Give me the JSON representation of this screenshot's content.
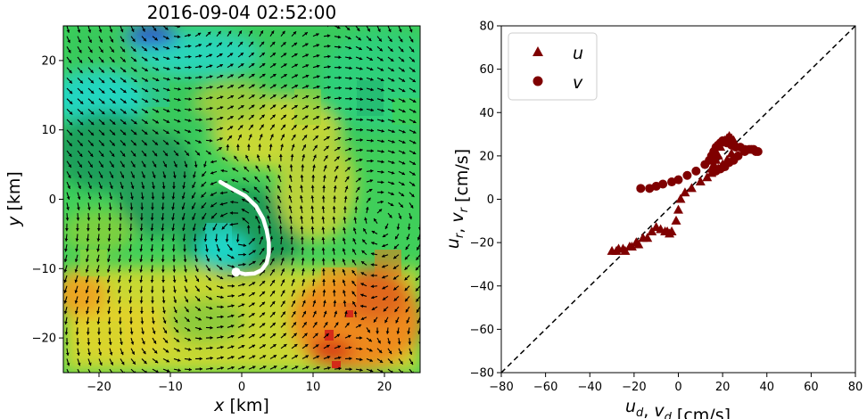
{
  "colors": {
    "marker": "#7f0000",
    "axis": "#000000",
    "trajectory": "#ffffff",
    "quiver": "#000000"
  },
  "chart_data": [
    {
      "type": "heatmap",
      "title": "2016-09-04 02:52:00",
      "xlabel": "x [km]",
      "ylabel": "y [km]",
      "xlim": [
        -25,
        25
      ],
      "ylim": [
        -25,
        25
      ],
      "xticks": [
        -20,
        -10,
        0,
        10,
        20
      ],
      "yticks": [
        -20,
        -10,
        0,
        10,
        20
      ],
      "xtick_labels": [
        "−20",
        "−10",
        "0",
        "10",
        "20"
      ],
      "ytick_labels": [
        "−20",
        "−10",
        "0",
        "10",
        "20"
      ],
      "overlay": "quiver velocity field (cyclonic eddy centered near (0, -5) km)",
      "trajectory": {
        "x": [
          -3,
          -1.5,
          0.5,
          2,
          3,
          3.5,
          3.8,
          3.8,
          3.5,
          2.8,
          1.8,
          0.5,
          -0.8
        ],
        "y": [
          2.5,
          1.6,
          0.5,
          -1,
          -2.8,
          -4.5,
          -6.2,
          -7.8,
          -9.2,
          -10.2,
          -10.7,
          -10.8,
          -10.5
        ]
      }
    },
    {
      "type": "scatter",
      "title": "",
      "xlabel": "u_d, v_d [cm/s]",
      "ylabel": "u_r, v_r [cm/s]",
      "xlim": [
        -80,
        80
      ],
      "ylim": [
        -80,
        80
      ],
      "xticks": [
        -80,
        -60,
        -40,
        -20,
        0,
        20,
        40,
        60,
        80
      ],
      "yticks": [
        -80,
        -60,
        -40,
        -20,
        0,
        20,
        40,
        60,
        80
      ],
      "xtick_labels": [
        "−80",
        "−60",
        "−40",
        "−20",
        "0",
        "20",
        "40",
        "60",
        "80"
      ],
      "ytick_labels": [
        "−80",
        "−60",
        "−40",
        "−20",
        "0",
        "20",
        "40",
        "60",
        "80"
      ],
      "reference_line": "y = x (dashed)",
      "legend": {
        "placement": "top-left",
        "entries": [
          "u",
          "v"
        ]
      },
      "series": [
        {
          "name": "u",
          "marker": "triangle",
          "x": [
            -30,
            -28,
            -27,
            -25,
            -24,
            -22,
            -21,
            -19,
            -18,
            -16,
            -14,
            -12,
            -10,
            -8,
            -6,
            -5,
            -4,
            -3,
            -1,
            0,
            1,
            3,
            6,
            10,
            13,
            15,
            16,
            17,
            18,
            19,
            20,
            21,
            22,
            23,
            24,
            25,
            26,
            24,
            22,
            20,
            18,
            16,
            15
          ],
          "y": [
            -24,
            -24,
            -23,
            -23,
            -24,
            -22,
            -22,
            -20,
            -21,
            -18,
            -18,
            -15,
            -13,
            -14,
            -15,
            -15,
            -16,
            -15,
            -10,
            -5,
            0,
            3,
            5,
            8,
            10,
            14,
            16,
            18,
            20,
            24,
            26,
            27,
            28,
            29,
            28,
            27,
            25,
            21,
            18,
            16,
            14,
            13,
            12
          ]
        },
        {
          "name": "v",
          "marker": "circle",
          "x": [
            -17,
            -13,
            -10,
            -7,
            -3,
            0,
            4,
            8,
            12,
            14,
            15,
            16,
            17,
            18,
            19,
            20,
            21,
            22,
            24,
            26,
            28,
            30,
            32,
            34,
            35,
            36,
            33,
            30,
            27,
            25,
            23,
            21,
            19,
            17,
            16
          ],
          "y": [
            5,
            5,
            6,
            7,
            8,
            9,
            11,
            13,
            16,
            18,
            20,
            22,
            24,
            25,
            26,
            27,
            27,
            26,
            25,
            24,
            24,
            23,
            23,
            23,
            22,
            22,
            23,
            22,
            20,
            18,
            17,
            15,
            14,
            13,
            13
          ]
        }
      ]
    }
  ]
}
